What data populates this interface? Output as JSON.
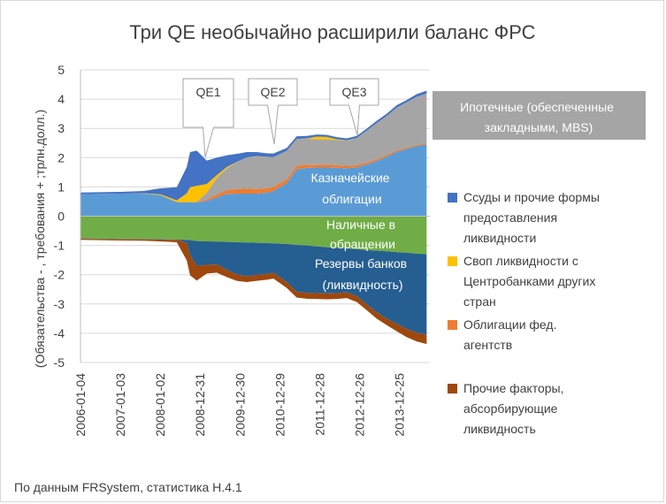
{
  "chart_data": {
    "type": "area",
    "title": "Три QE необычайно расширили баланс ФРС",
    "ylabel": "(Обязательства - , требования + ;трлн.долл.)",
    "xlabel": "",
    "ylim": [
      -5,
      5
    ],
    "yticks": [
      "5",
      "4",
      "3",
      "2",
      "1",
      "0",
      "-1",
      "-2",
      "-3",
      "-4",
      "-5"
    ],
    "xticks": [
      "2006-01-04",
      "2007-01-03",
      "2008-01-02",
      "2008-12-31",
      "2009-12-30",
      "2010-12-29",
      "2011-12-28",
      "2012-12-26",
      "2013-12-25"
    ],
    "x_range": [
      "2006-01-04",
      "2014-09-30"
    ],
    "grid": true,
    "legend_position": "right",
    "colors": {
      "treasuries": "#5b9bd5",
      "agency": "#ed7d31",
      "mbs": "#a5a5a5",
      "swaps": "#ffc000",
      "loans": "#4472c4",
      "currency": "#70ad47",
      "reserves": "#255e91",
      "other": "#9e480e"
    },
    "x": [
      "2006-01",
      "2007-01",
      "2007-08",
      "2008-01",
      "2008-06",
      "2008-09",
      "2008-10",
      "2008-12",
      "2009-03",
      "2009-06",
      "2009-09",
      "2009-12",
      "2010-03",
      "2010-06",
      "2010-09",
      "2010-11",
      "2011-03",
      "2011-06",
      "2011-09",
      "2011-12",
      "2012-03",
      "2012-06",
      "2012-09",
      "2012-12",
      "2013-03",
      "2013-06",
      "2013-09",
      "2013-12",
      "2014-03",
      "2014-06",
      "2014-09"
    ],
    "series": [
      {
        "name": "Казначейские облигации",
        "side": "assets",
        "values": [
          0.75,
          0.77,
          0.77,
          0.72,
          0.48,
          0.48,
          0.48,
          0.47,
          0.52,
          0.64,
          0.76,
          0.77,
          0.77,
          0.77,
          0.8,
          0.86,
          1.13,
          1.6,
          1.65,
          1.66,
          1.66,
          1.65,
          1.64,
          1.66,
          1.77,
          1.89,
          2.03,
          2.2,
          2.3,
          2.4,
          2.45
        ]
      },
      {
        "name": "Облигации фед. агентств",
        "side": "assets",
        "values": [
          0,
          0,
          0,
          0,
          0,
          0,
          0.01,
          0.02,
          0.05,
          0.1,
          0.13,
          0.16,
          0.17,
          0.16,
          0.15,
          0.14,
          0.13,
          0.12,
          0.11,
          0.1,
          0.1,
          0.09,
          0.08,
          0.08,
          0.07,
          0.06,
          0.06,
          0.05,
          0.04,
          0.04,
          0.04
        ]
      },
      {
        "name": "Ипотечные (обеспеченные закладными, MBS)",
        "side": "assets",
        "values": [
          0,
          0,
          0,
          0,
          0,
          0,
          0,
          0,
          0.23,
          0.56,
          0.74,
          0.91,
          1.07,
          1.11,
          1.08,
          1.02,
          0.97,
          0.92,
          0.89,
          0.86,
          0.86,
          0.86,
          0.86,
          0.93,
          1.08,
          1.23,
          1.33,
          1.46,
          1.55,
          1.64,
          1.7
        ]
      },
      {
        "name": "Своп ликвидности с Центробанками других стран",
        "side": "assets",
        "values": [
          0,
          0,
          0.01,
          0.03,
          0.06,
          0.3,
          0.5,
          0.55,
          0.3,
          0.1,
          0.05,
          0.01,
          0,
          0.01,
          0,
          0,
          0,
          0,
          0.01,
          0.1,
          0.09,
          0.03,
          0.01,
          0,
          0,
          0,
          0,
          0,
          0,
          0,
          0
        ]
      },
      {
        "name": "Ссуды и прочие формы предоставления ликвидности",
        "side": "assets",
        "values": [
          0.06,
          0.06,
          0.08,
          0.2,
          0.45,
          0.9,
          1.2,
          1.2,
          0.8,
          0.6,
          0.4,
          0.28,
          0.18,
          0.14,
          0.12,
          0.12,
          0.1,
          0.09,
          0.08,
          0.07,
          0.07,
          0.07,
          0.07,
          0.07,
          0.07,
          0.08,
          0.08,
          0.08,
          0.08,
          0.09,
          0.1
        ]
      },
      {
        "name": "Наличные в обращении",
        "side": "liabilities",
        "values": [
          -0.76,
          -0.78,
          -0.78,
          -0.79,
          -0.8,
          -0.81,
          -0.82,
          -0.85,
          -0.86,
          -0.87,
          -0.88,
          -0.89,
          -0.9,
          -0.91,
          -0.92,
          -0.93,
          -0.95,
          -0.98,
          -1.0,
          -1.03,
          -1.06,
          -1.08,
          -1.1,
          -1.13,
          -1.16,
          -1.18,
          -1.2,
          -1.23,
          -1.25,
          -1.28,
          -1.3
        ]
      },
      {
        "name": "Резервы банков (ликвидность)",
        "side": "liabilities",
        "values": [
          -0.01,
          -0.01,
          -0.01,
          -0.01,
          -0.01,
          -0.1,
          -0.5,
          -0.85,
          -0.8,
          -0.78,
          -0.95,
          -1.1,
          -1.15,
          -1.1,
          -1.05,
          -1.0,
          -1.3,
          -1.6,
          -1.62,
          -1.6,
          -1.58,
          -1.55,
          -1.5,
          -1.6,
          -1.85,
          -2.1,
          -2.3,
          -2.45,
          -2.6,
          -2.7,
          -2.75
        ]
      },
      {
        "name": "Прочие факторы, абсорбирующие ликвидность",
        "side": "liabilities",
        "values": [
          -0.04,
          -0.04,
          -0.05,
          -0.06,
          -0.08,
          -0.6,
          -0.7,
          -0.5,
          -0.3,
          -0.28,
          -0.25,
          -0.22,
          -0.2,
          -0.2,
          -0.2,
          -0.2,
          -0.2,
          -0.2,
          -0.2,
          -0.2,
          -0.2,
          -0.2,
          -0.2,
          -0.2,
          -0.2,
          -0.22,
          -0.22,
          -0.25,
          -0.28,
          -0.3,
          -0.32
        ]
      }
    ],
    "annotations": [
      {
        "label": "QE1",
        "date": "2008-12"
      },
      {
        "label": "QE2",
        "date": "2010-11"
      },
      {
        "label": "QE3",
        "date": "2012-09"
      }
    ],
    "inline_labels": {
      "mbs": "Ипотечные (обеспеченные закладными, MBS)",
      "treasuries": "Казначейские облигации",
      "currency": "Наличные в обращении",
      "reserves": "Резервы банков (ликвидность)"
    },
    "legend": [
      {
        "key": "loans",
        "label": "Ссуды и прочие формы предоставления ликвидности"
      },
      {
        "key": "swaps",
        "label": "Своп ликвидности с Центробанками других стран"
      },
      {
        "key": "agency",
        "label": "Облигации фед. агентств"
      },
      {
        "key": "other",
        "label": "Прочие факторы, абсорбирующие ликвидность"
      }
    ]
  },
  "source_note": "По данным FRSystem, статистика H.4.1"
}
